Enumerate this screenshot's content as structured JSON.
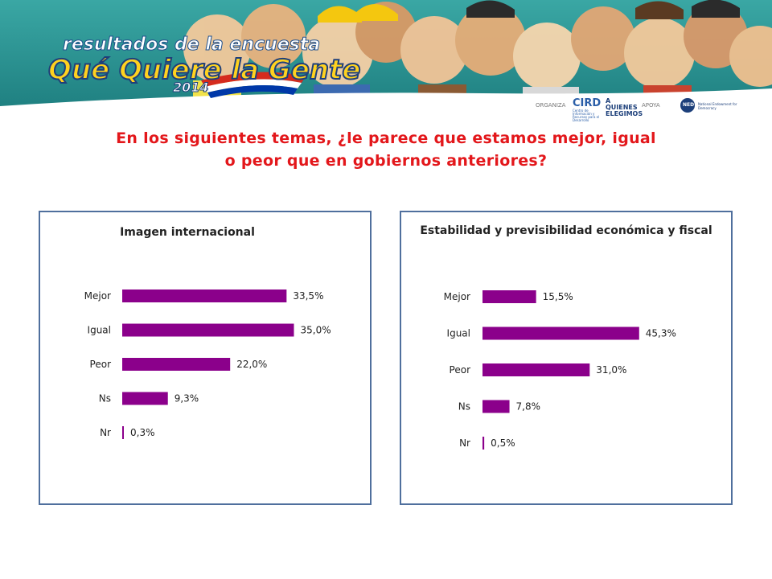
{
  "banner": {
    "logo_line1": "resultados de la encuesta",
    "logo_line2": "Qué Quiere la Gente",
    "logo_year": "2014"
  },
  "sponsors": {
    "organiza_label": "ORGANIZA",
    "cird_name": "CIRD",
    "cird_sub": "Centro de Información y Recursos para el Desarrollo",
    "aq_name": "A QUIENES ELEGIMOS",
    "apoya_label": "APOYA",
    "ned_name": "NED",
    "ned_full": "National Endowment for Democracy"
  },
  "question": {
    "line1": "En los siguientes temas, ¿le parece que estamos mejor, igual",
    "line2": "o peor que en gobiernos anteriores?"
  },
  "colors": {
    "bar": "#8b008b",
    "title_red": "#e3171b",
    "panel_border": "#4f6f9d"
  },
  "chart_data": [
    {
      "type": "bar",
      "orientation": "horizontal",
      "title": "Imagen internacional",
      "categories": [
        "Mejor",
        "Igual",
        "Peor",
        "Ns",
        "Nr"
      ],
      "values": [
        33.5,
        35.0,
        22.0,
        9.3,
        0.3
      ],
      "labels": [
        "33,5%",
        "35,0%",
        "22,0%",
        "9,3%",
        "0,3%"
      ],
      "unit": "%",
      "grid": false
    },
    {
      "type": "bar",
      "orientation": "horizontal",
      "title": "Estabilidad  y previsibilidad económica y fiscal",
      "categories": [
        "Mejor",
        "Igual",
        "Peor",
        "Ns",
        "Nr"
      ],
      "values": [
        15.5,
        45.3,
        31.0,
        7.8,
        0.5
      ],
      "labels": [
        "15,5%",
        "45,3%",
        "31,0%",
        "7,8%",
        "0,5%"
      ],
      "unit": "%",
      "grid": false
    }
  ]
}
